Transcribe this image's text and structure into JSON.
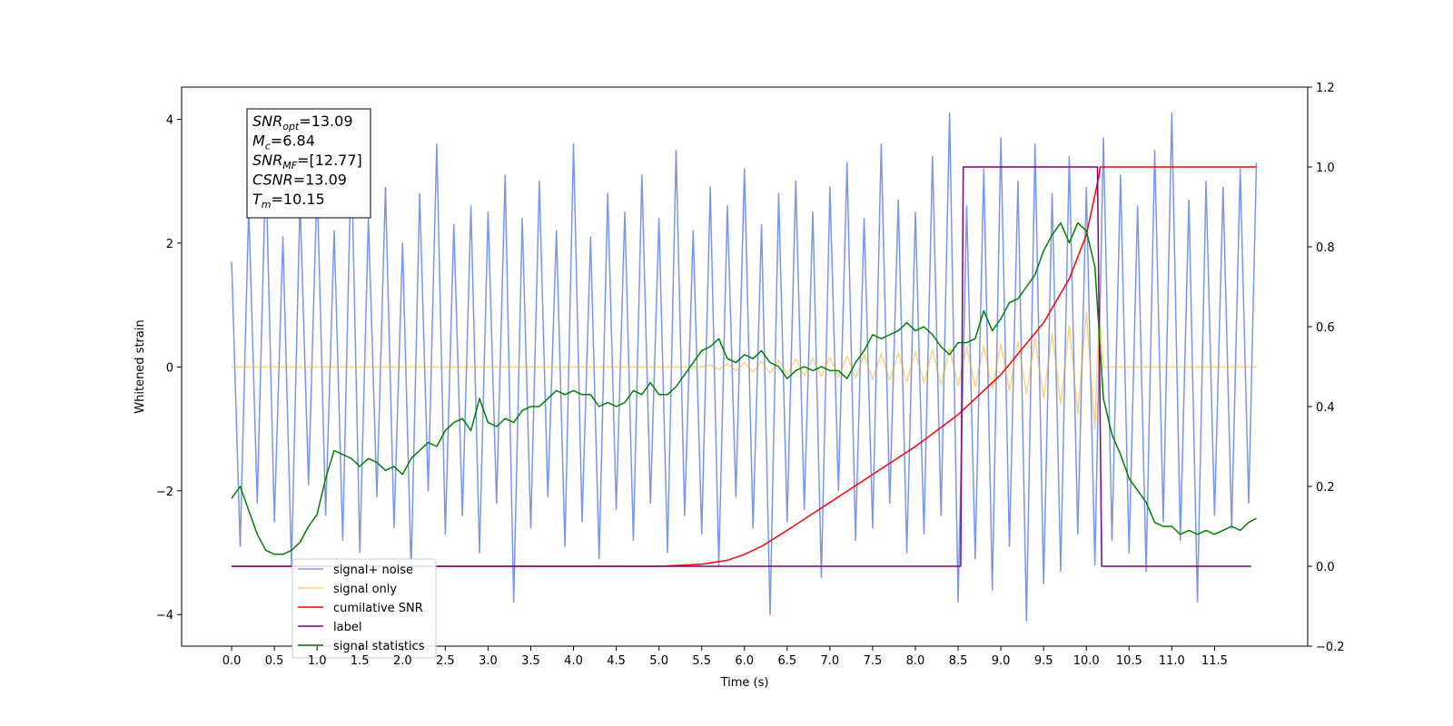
{
  "chart_data": {
    "type": "line",
    "xlabel": "Time (s)",
    "ylabel": "Whitened strain",
    "xlim": [
      -0.585,
      12.59
    ],
    "ylim": [
      -4.51,
      4.52
    ],
    "y2lim": [
      -0.2,
      1.2
    ],
    "xticks": [
      {
        "value": 0,
        "label": "0.0"
      },
      0.5,
      {
        "value": 1,
        "label": "1.0"
      },
      1.5,
      {
        "value": 2,
        "label": "2.0"
      },
      2.5,
      {
        "value": 3,
        "label": "3.0"
      },
      3.5,
      {
        "value": 4,
        "label": "4.0"
      },
      4.5,
      {
        "value": 5,
        "label": "5.0"
      },
      5.5,
      {
        "value": 6,
        "label": "6.0"
      },
      6.5,
      {
        "value": 7,
        "label": "7.0"
      },
      7.5,
      {
        "value": 8,
        "label": "8.0"
      },
      8.5,
      {
        "value": 9,
        "label": "9.0"
      },
      9.5,
      {
        "value": 10,
        "label": "10.0"
      },
      10.5,
      {
        "value": 11,
        "label": "11.0"
      },
      11.5
    ],
    "yticks": [
      {
        "value": -4,
        "label": "−4"
      },
      {
        "value": -2,
        "label": "−2"
      },
      0,
      2,
      4
    ],
    "y2ticks": [
      {
        "value": -0.2,
        "label": "−0.2"
      },
      {
        "value": 0,
        "label": "0.0"
      },
      0.2,
      0.4,
      0.6,
      0.8,
      {
        "value": 1,
        "label": "1.0"
      },
      1.2
    ],
    "legend": "lower left",
    "annotation_lines": [
      {
        "symbol": "SNR",
        "subscript": "opt",
        "text": "=13.09"
      },
      {
        "symbol": "M",
        "subscript": "c",
        "text": "=6.84"
      },
      {
        "symbol": "SNR",
        "subscript": "MF",
        "text": "=[12.77]"
      },
      {
        "symbol": "CSNR",
        "subscript": "",
        "text": "=13.09"
      },
      {
        "symbol": "T",
        "subscript": "m",
        "text": "=10.15"
      }
    ],
    "series": [
      {
        "name": "signal+ noise",
        "color": "#4169e1",
        "alpha": 0.7,
        "axis": "y",
        "x": [
          0,
          0.1,
          0.2,
          0.3,
          0.4,
          0.5,
          0.6,
          0.7,
          0.8,
          0.9,
          1,
          1.1,
          1.2,
          1.3,
          1.4,
          1.5,
          1.6,
          1.7,
          1.8,
          1.9,
          2,
          2.1,
          2.2,
          2.3,
          2.4,
          2.5,
          2.6,
          2.7,
          2.8,
          2.9,
          3,
          3.1,
          3.2,
          3.3,
          3.4,
          3.5,
          3.6,
          3.7,
          3.8,
          3.9,
          4,
          4.1,
          4.2,
          4.3,
          4.4,
          4.5,
          4.6,
          4.7,
          4.8,
          4.9,
          5,
          5.1,
          5.2,
          5.3,
          5.4,
          5.5,
          5.6,
          5.7,
          5.8,
          5.9,
          6,
          6.1,
          6.2,
          6.3,
          6.4,
          6.5,
          6.6,
          6.7,
          6.8,
          6.9,
          7,
          7.1,
          7.2,
          7.3,
          7.4,
          7.5,
          7.6,
          7.7,
          7.8,
          7.9,
          8,
          8.1,
          8.2,
          8.3,
          8.4,
          8.5,
          8.6,
          8.7,
          8.8,
          8.9,
          9,
          9.1,
          9.2,
          9.3,
          9.4,
          9.5,
          9.6,
          9.7,
          9.8,
          9.9,
          10,
          10.1,
          10.2,
          10.3,
          10.4,
          10.5,
          10.6,
          10.7,
          10.8,
          10.9,
          11,
          11.1,
          11.2,
          11.3,
          11.4,
          11.5,
          11.6,
          11.7,
          11.8,
          11.9,
          11.99
        ],
        "values": [
          1.7,
          -2.9,
          2.6,
          -2.2,
          3.3,
          -2.5,
          2.1,
          -3.2,
          2.7,
          -1.9,
          3.0,
          -2.4,
          2.2,
          -2.8,
          3.5,
          -3.0,
          2.4,
          -2.1,
          2.9,
          -2.6,
          2.0,
          -3.3,
          2.8,
          -2.0,
          3.6,
          -2.7,
          2.3,
          -2.4,
          2.6,
          -3.0,
          2.5,
          -2.2,
          3.1,
          -3.8,
          2.4,
          -2.6,
          3.0,
          -2.1,
          2.2,
          -2.9,
          3.6,
          -2.5,
          2.1,
          -3.1,
          2.8,
          -2.3,
          2.5,
          -2.8,
          3.1,
          -2.2,
          2.4,
          -3.0,
          3.5,
          -2.4,
          2.2,
          -2.7,
          2.9,
          -3.2,
          2.6,
          -2.1,
          3.2,
          -2.6,
          2.3,
          -4.0,
          2.8,
          -2.5,
          3.0,
          -2.3,
          2.5,
          -3.4,
          2.9,
          -2.0,
          3.3,
          -2.8,
          2.4,
          -2.6,
          3.6,
          -2.2,
          2.7,
          -3.0,
          2.5,
          -2.7,
          3.4,
          -2.4,
          4.1,
          -3.8,
          2.6,
          -3.1,
          3.2,
          -3.6,
          3.7,
          -2.9,
          3.0,
          -4.1,
          3.6,
          -3.5,
          2.8,
          -3.3,
          3.4,
          -2.7,
          2.9,
          -3.2,
          3.7,
          -2.8,
          3.1,
          -3.0,
          2.6,
          -3.3,
          3.5,
          -2.5,
          4.1,
          -2.8,
          2.7,
          -3.8,
          3.0,
          -2.4,
          2.9,
          -2.6,
          3.2,
          -2.2,
          3.3
        ]
      },
      {
        "name": "signal only",
        "color": "#ffa500",
        "alpha": 0.5,
        "axis": "y",
        "x": [
          0,
          5.5,
          5.6,
          5.7,
          5.8,
          5.9,
          6,
          6.1,
          6.2,
          6.3,
          6.4,
          6.5,
          6.6,
          6.7,
          6.8,
          6.9,
          7,
          7.1,
          7.2,
          7.3,
          7.4,
          7.5,
          7.6,
          7.7,
          7.8,
          7.9,
          8,
          8.1,
          8.2,
          8.3,
          8.4,
          8.5,
          8.6,
          8.7,
          8.8,
          8.9,
          9,
          9.1,
          9.2,
          9.3,
          9.4,
          9.5,
          9.6,
          9.7,
          9.8,
          9.9,
          10,
          10.1,
          10.15,
          10.2,
          11.99
        ],
        "values": [
          0,
          0,
          0.03,
          -0.04,
          0.05,
          -0.06,
          0.07,
          -0.08,
          0.09,
          -0.1,
          0.11,
          -0.12,
          0.13,
          -0.14,
          0.14,
          -0.15,
          0.16,
          -0.17,
          0.18,
          -0.18,
          0.19,
          -0.2,
          0.21,
          -0.22,
          0.23,
          -0.24,
          0.25,
          -0.26,
          0.27,
          -0.28,
          0.29,
          -0.3,
          0.31,
          -0.32,
          0.34,
          -0.35,
          0.37,
          -0.39,
          0.41,
          -0.43,
          0.46,
          -0.5,
          0.54,
          -0.6,
          0.67,
          -0.76,
          0.88,
          -1.0,
          0.9,
          0,
          0
        ]
      },
      {
        "name": "cumilative SNR",
        "color": "#ff0000",
        "alpha": 1,
        "axis": "y2",
        "x": [
          0,
          5,
          5.5,
          5.8,
          6,
          6.2,
          6.5,
          7,
          7.5,
          8,
          8.5,
          9,
          9.5,
          9.8,
          10,
          10.1,
          10.15,
          10.16,
          11.99
        ],
        "values": [
          0,
          0,
          0.005,
          0.015,
          0.03,
          0.05,
          0.09,
          0.16,
          0.23,
          0.3,
          0.38,
          0.48,
          0.61,
          0.72,
          0.83,
          0.93,
          0.98,
          1,
          1
        ]
      },
      {
        "name": "label",
        "color": "#800080",
        "alpha": 1,
        "axis": "y2",
        "x": [
          0,
          8.53,
          8.56,
          10.13,
          10.18,
          11.93
        ],
        "values": [
          0,
          0,
          1,
          1,
          0,
          0
        ]
      },
      {
        "name": "signal statistics",
        "color": "#008000",
        "alpha": 1,
        "axis": "y2",
        "x": [
          0,
          0.1,
          0.2,
          0.3,
          0.4,
          0.5,
          0.6,
          0.7,
          0.8,
          0.9,
          1,
          1.1,
          1.2,
          1.3,
          1.4,
          1.5,
          1.6,
          1.7,
          1.8,
          1.9,
          2,
          2.1,
          2.2,
          2.3,
          2.4,
          2.5,
          2.6,
          2.7,
          2.8,
          2.9,
          3,
          3.1,
          3.2,
          3.3,
          3.4,
          3.5,
          3.6,
          3.7,
          3.8,
          3.9,
          4,
          4.1,
          4.2,
          4.3,
          4.4,
          4.5,
          4.6,
          4.7,
          4.8,
          4.9,
          5,
          5.1,
          5.2,
          5.3,
          5.4,
          5.5,
          5.6,
          5.7,
          5.8,
          5.9,
          6,
          6.1,
          6.2,
          6.3,
          6.4,
          6.5,
          6.6,
          6.7,
          6.8,
          6.9,
          7,
          7.1,
          7.2,
          7.3,
          7.4,
          7.5,
          7.6,
          7.7,
          7.8,
          7.9,
          8,
          8.1,
          8.2,
          8.3,
          8.4,
          8.5,
          8.6,
          8.7,
          8.8,
          8.9,
          9,
          9.1,
          9.2,
          9.3,
          9.4,
          9.5,
          9.6,
          9.7,
          9.8,
          9.9,
          10,
          10.1,
          10.2,
          10.3,
          10.4,
          10.5,
          10.6,
          10.7,
          10.8,
          10.9,
          11,
          11.1,
          11.2,
          11.3,
          11.4,
          11.5,
          11.6,
          11.7,
          11.8,
          11.9,
          11.99
        ],
        "values": [
          0.17,
          0.2,
          0.14,
          0.08,
          0.04,
          0.03,
          0.03,
          0.04,
          0.06,
          0.1,
          0.13,
          0.22,
          0.29,
          0.28,
          0.27,
          0.25,
          0.27,
          0.26,
          0.24,
          0.25,
          0.23,
          0.27,
          0.29,
          0.31,
          0.3,
          0.34,
          0.36,
          0.37,
          0.34,
          0.42,
          0.36,
          0.35,
          0.37,
          0.36,
          0.39,
          0.4,
          0.4,
          0.42,
          0.44,
          0.43,
          0.44,
          0.43,
          0.43,
          0.4,
          0.41,
          0.4,
          0.41,
          0.44,
          0.43,
          0.46,
          0.43,
          0.43,
          0.45,
          0.48,
          0.51,
          0.54,
          0.55,
          0.57,
          0.52,
          0.51,
          0.53,
          0.52,
          0.54,
          0.51,
          0.5,
          0.47,
          0.49,
          0.5,
          0.49,
          0.5,
          0.49,
          0.49,
          0.47,
          0.51,
          0.54,
          0.58,
          0.57,
          0.58,
          0.59,
          0.61,
          0.59,
          0.6,
          0.58,
          0.55,
          0.53,
          0.56,
          0.56,
          0.57,
          0.64,
          0.59,
          0.62,
          0.66,
          0.67,
          0.7,
          0.73,
          0.79,
          0.83,
          0.86,
          0.81,
          0.86,
          0.84,
          0.75,
          0.42,
          0.33,
          0.28,
          0.22,
          0.19,
          0.16,
          0.11,
          0.1,
          0.1,
          0.08,
          0.09,
          0.08,
          0.09,
          0.08,
          0.09,
          0.1,
          0.09,
          0.11,
          0.12
        ]
      }
    ]
  }
}
